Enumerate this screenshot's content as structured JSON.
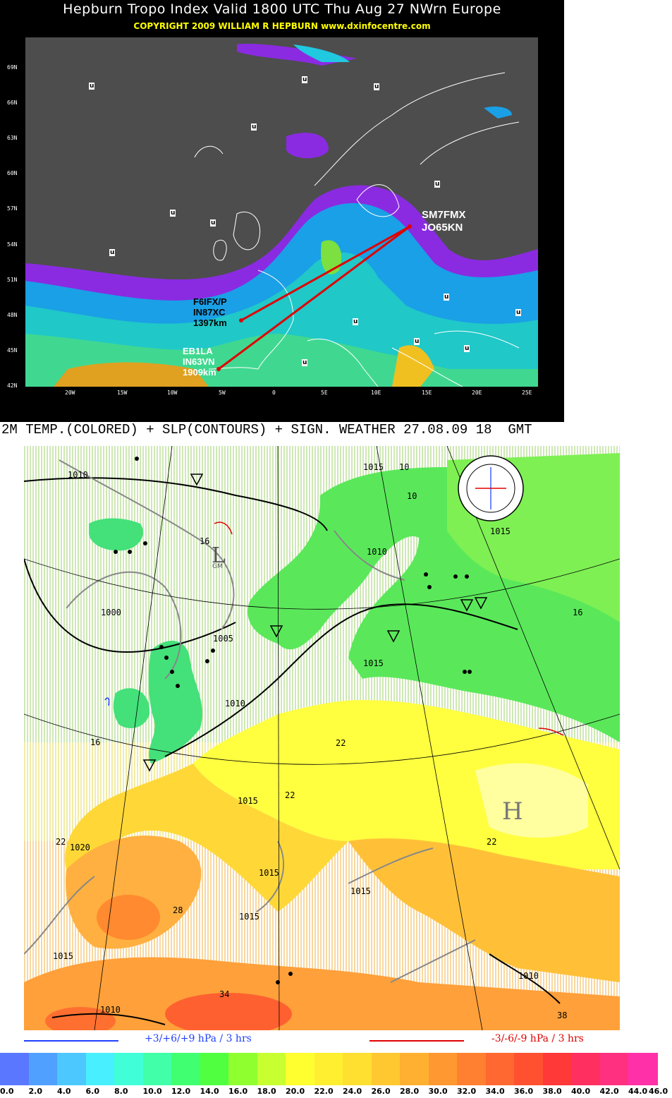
{
  "tropo": {
    "title": "Hepburn Tropo Index Valid 1800 UTC Thu Aug 27 NWrn Europe",
    "copyright": "COPYRIGHT 2009   WILLIAM R HEPBURN   www.dxinfocentre.com",
    "lat_labels": [
      "69N",
      "66N",
      "63N",
      "60N",
      "57N",
      "54N",
      "51N",
      "48N",
      "45N",
      "42N"
    ],
    "lon_labels": [
      "20W",
      "15W",
      "10W",
      "5W",
      "0",
      "5E",
      "10E",
      "15E",
      "20E",
      "25E"
    ],
    "stations": {
      "sm": {
        "call": "SM7FMX",
        "loc": "JO65KN"
      },
      "f6": {
        "call": "F6IFX/P",
        "loc": "IN87XC",
        "dist": "1397km"
      },
      "eb": {
        "call": "EB1LA",
        "loc": "IN63VN",
        "dist": "1909km"
      }
    },
    "marker": "u"
  },
  "weather": {
    "title": "2M TEMP.(COLORED) + SLP(CONTOURS) + SIGN. WEATHER 27.08.09 18  GMT",
    "pressure_labels": [
      "1010",
      "1015",
      "10",
      "10",
      "1015",
      "1010",
      "16",
      "1000",
      "1005",
      "1015",
      "1010",
      "16",
      "22",
      "22",
      "22",
      "1015",
      "22",
      "1020",
      "28",
      "1015",
      "1015",
      "1015",
      "1015",
      "1010",
      "34",
      "1010",
      "38",
      "16"
    ],
    "symbols": {
      "low": "L",
      "high": "H",
      "low_sub": "GM"
    },
    "legend": {
      "rise": "+3/+6/+9 hPa / 3 hrs",
      "fall": "-3/-6/-9 hPa / 3 hrs"
    },
    "colorscale": {
      "labels": [
        "0.0",
        "2.0",
        "4.0",
        "6.0",
        "8.0",
        "10.0",
        "12.0",
        "14.0",
        "16.0",
        "18.0",
        "20.0",
        "22.0",
        "24.0",
        "26.0",
        "28.0",
        "30.0",
        "32.0",
        "34.0",
        "36.0",
        "38.0",
        "40.0",
        "42.0",
        "44.0",
        "46.0"
      ],
      "colors": [
        "#5a78ff",
        "#50a0ff",
        "#4cc8ff",
        "#48f0ff",
        "#40ffd8",
        "#40ffa8",
        "#40ff70",
        "#50ff40",
        "#90ff30",
        "#c8ff30",
        "#ffff30",
        "#ffef30",
        "#ffe030",
        "#ffc830",
        "#ffb030",
        "#ff9830",
        "#ff8030",
        "#ff6830",
        "#ff5030",
        "#ff3838",
        "#ff3060",
        "#ff3080",
        "#ff30a8"
      ]
    }
  }
}
